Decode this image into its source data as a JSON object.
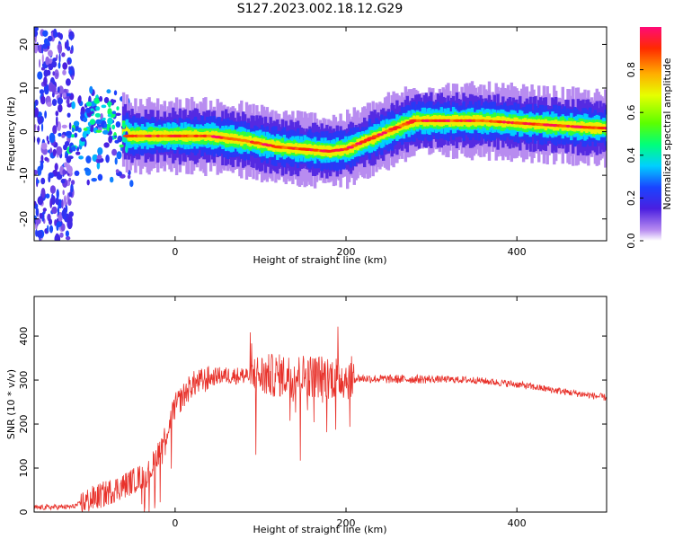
{
  "title": "S127.2023.002.18.12.G29",
  "chart_data": [
    {
      "type": "heatmap",
      "xlabel": "Height of straight line (km)",
      "ylabel": "Frequency (Hz)",
      "xlim": [
        -165,
        505
      ],
      "ylim": [
        -25,
        24
      ],
      "x_ticks": [
        0,
        200,
        400
      ],
      "y_ticks": [
        -20,
        -10,
        0,
        10,
        20
      ],
      "colorbar": {
        "label": "Normalized spectral amplitude",
        "range": [
          0,
          1
        ],
        "ticks": [
          "0.0",
          "0.2",
          "0.4",
          "0.6",
          "0.8"
        ],
        "colormap": "rainbow"
      },
      "ridge": {
        "x": [
          -120,
          -95,
          -75,
          -62,
          -55,
          -40,
          0,
          40,
          80,
          120,
          150,
          180,
          200,
          230,
          260,
          280,
          320,
          360,
          400,
          440,
          480,
          505
        ],
        "frequency_hz": [
          -3,
          4,
          3,
          0.5,
          -1,
          -1,
          -1,
          -1,
          -2,
          -3.5,
          -4,
          -4.5,
          -4,
          -1.5,
          1,
          2.5,
          2.5,
          2.5,
          2,
          1.5,
          1,
          0.8
        ]
      }
    },
    {
      "type": "line",
      "xlabel": "Height of straight line (km)",
      "ylabel": "SNR (10 * v/v)",
      "xlim": [
        -165,
        505
      ],
      "ylim": [
        0,
        490
      ],
      "x_ticks": [
        0,
        200,
        400
      ],
      "y_ticks": [
        0,
        100,
        200,
        300,
        400
      ],
      "series": [
        {
          "color": "#e8322b",
          "trend_x": [
            -165,
            -120,
            -90,
            -60,
            -30,
            -10,
            0,
            20,
            50,
            100,
            150,
            200,
            250,
            300,
            350,
            400,
            450,
            505
          ],
          "trend_y": [
            10,
            12,
            35,
            60,
            90,
            180,
            240,
            290,
            310,
            310,
            310,
            305,
            302,
            302,
            300,
            290,
            275,
            260
          ]
        }
      ]
    }
  ]
}
